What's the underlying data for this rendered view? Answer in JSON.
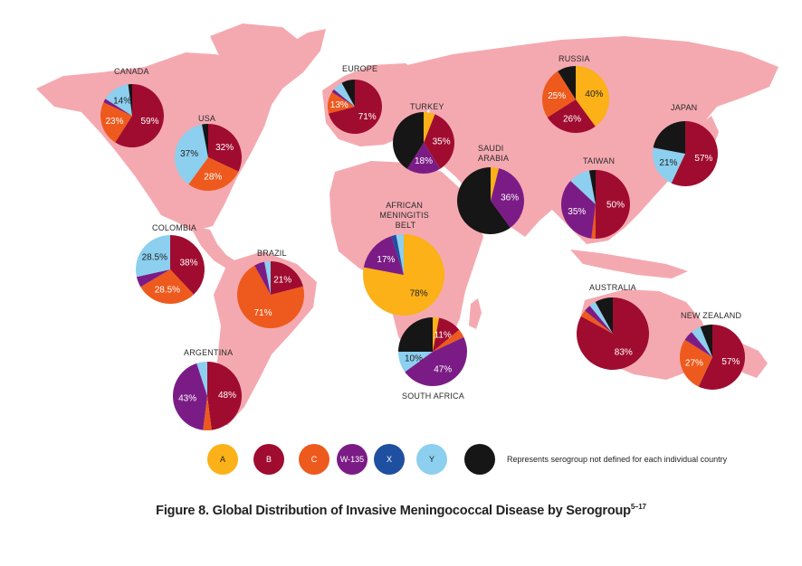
{
  "colors": {
    "A": "#fbb117",
    "B": "#a00c30",
    "C": "#ee5a1d",
    "W135": "#7b1c86",
    "X": "#1f4fa1",
    "Y": "#8ccfef",
    "undefined": "#161616",
    "land": "#f4a9b0"
  },
  "legend": {
    "items": [
      {
        "key": "A",
        "label": "A"
      },
      {
        "key": "B",
        "label": "B"
      },
      {
        "key": "C",
        "label": "C"
      },
      {
        "key": "W135",
        "label": "W-135"
      },
      {
        "key": "X",
        "label": "X"
      },
      {
        "key": "Y",
        "label": "Y"
      }
    ],
    "undefined_label": "Represents serogroup not defined for each individual country"
  },
  "caption": {
    "text": "Figure 8. Global Distribution of Invasive Meningococcal Disease by Serogroup",
    "superscript": "5–17"
  },
  "regions": [
    {
      "name": "CANADA",
      "slices": [
        {
          "g": "B",
          "v": 59,
          "label": "59%"
        },
        {
          "g": "C",
          "v": 23,
          "label": "23%"
        },
        {
          "g": "W135",
          "v": 2
        },
        {
          "g": "Y",
          "v": 14,
          "label": "14%"
        },
        {
          "g": "undefined",
          "v": 2
        }
      ]
    },
    {
      "name": "USA",
      "slices": [
        {
          "g": "B",
          "v": 32,
          "label": "32%"
        },
        {
          "g": "C",
          "v": 28,
          "label": "28%"
        },
        {
          "g": "Y",
          "v": 37,
          "label": "37%"
        },
        {
          "g": "undefined",
          "v": 3
        }
      ]
    },
    {
      "name": "EUROPE",
      "slices": [
        {
          "g": "B",
          "v": 71,
          "label": "71%"
        },
        {
          "g": "C",
          "v": 13,
          "label": "13%"
        },
        {
          "g": "W135",
          "v": 2
        },
        {
          "g": "Y",
          "v": 6
        },
        {
          "g": "undefined",
          "v": 8
        }
      ]
    },
    {
      "name": "TURKEY",
      "slices": [
        {
          "g": "A",
          "v": 6
        },
        {
          "g": "B",
          "v": 35,
          "label": "35%"
        },
        {
          "g": "W135",
          "v": 18,
          "label": "18%"
        },
        {
          "g": "undefined",
          "v": 41
        }
      ]
    },
    {
      "name": "RUSSIA",
      "slices": [
        {
          "g": "A",
          "v": 40,
          "label": "40%"
        },
        {
          "g": "B",
          "v": 26,
          "label": "26%"
        },
        {
          "g": "C",
          "v": 25,
          "label": "25%"
        },
        {
          "g": "undefined",
          "v": 9
        }
      ]
    },
    {
      "name": "SAUDI ARABIA",
      "slices": [
        {
          "g": "A",
          "v": 4
        },
        {
          "g": "W135",
          "v": 36,
          "label": "36%"
        },
        {
          "g": "undefined",
          "v": 60
        }
      ]
    },
    {
      "name": "TAIWAN",
      "slices": [
        {
          "g": "B",
          "v": 50,
          "label": "50%"
        },
        {
          "g": "C",
          "v": 2
        },
        {
          "g": "W135",
          "v": 35,
          "label": "35%"
        },
        {
          "g": "Y",
          "v": 10
        },
        {
          "g": "undefined",
          "v": 3
        }
      ]
    },
    {
      "name": "JAPAN",
      "slices": [
        {
          "g": "B",
          "v": 57,
          "label": "57%"
        },
        {
          "g": "Y",
          "v": 21,
          "label": "21%"
        },
        {
          "g": "undefined",
          "v": 22
        }
      ]
    },
    {
      "name": "COLOMBIA",
      "slices": [
        {
          "g": "B",
          "v": 38,
          "label": "38%"
        },
        {
          "g": "C",
          "v": 28.5,
          "label": "28.5%"
        },
        {
          "g": "W135",
          "v": 5
        },
        {
          "g": "Y",
          "v": 28.5,
          "label": "28.5%"
        }
      ]
    },
    {
      "name": "BRAZIL",
      "slices": [
        {
          "g": "B",
          "v": 21,
          "label": "21%"
        },
        {
          "g": "C",
          "v": 71,
          "label": "71%"
        },
        {
          "g": "W135",
          "v": 5
        },
        {
          "g": "Y",
          "v": 3
        }
      ]
    },
    {
      "name": "AFRICAN MENINGITIS BELT",
      "slices": [
        {
          "g": "A",
          "v": 78,
          "label": "78%"
        },
        {
          "g": "W135",
          "v": 17,
          "label": "17%"
        },
        {
          "g": "X",
          "v": 2
        },
        {
          "g": "Y",
          "v": 3
        }
      ]
    },
    {
      "name": "SOUTH AFRICA",
      "slices": [
        {
          "g": "A",
          "v": 3
        },
        {
          "g": "B",
          "v": 11,
          "label": "11%"
        },
        {
          "g": "C",
          "v": 4
        },
        {
          "g": "W135",
          "v": 47,
          "label": "47%"
        },
        {
          "g": "Y",
          "v": 10,
          "label": "10%"
        },
        {
          "g": "undefined",
          "v": 25
        }
      ]
    },
    {
      "name": "ARGENTINA",
      "slices": [
        {
          "g": "B",
          "v": 48,
          "label": "48%"
        },
        {
          "g": "C",
          "v": 4
        },
        {
          "g": "W135",
          "v": 43,
          "label": "43%"
        },
        {
          "g": "Y",
          "v": 5
        }
      ]
    },
    {
      "name": "AUSTRALIA",
      "slices": [
        {
          "g": "B",
          "v": 83,
          "label": "83%"
        },
        {
          "g": "C",
          "v": 3
        },
        {
          "g": "W135",
          "v": 3
        },
        {
          "g": "Y",
          "v": 3
        },
        {
          "g": "undefined",
          "v": 8
        }
      ]
    },
    {
      "name": "NEW ZEALAND",
      "slices": [
        {
          "g": "B",
          "v": 57,
          "label": "57%"
        },
        {
          "g": "C",
          "v": 27,
          "label": "27%"
        },
        {
          "g": "W135",
          "v": 5
        },
        {
          "g": "Y",
          "v": 5
        },
        {
          "g": "undefined",
          "v": 6
        }
      ]
    }
  ]
}
